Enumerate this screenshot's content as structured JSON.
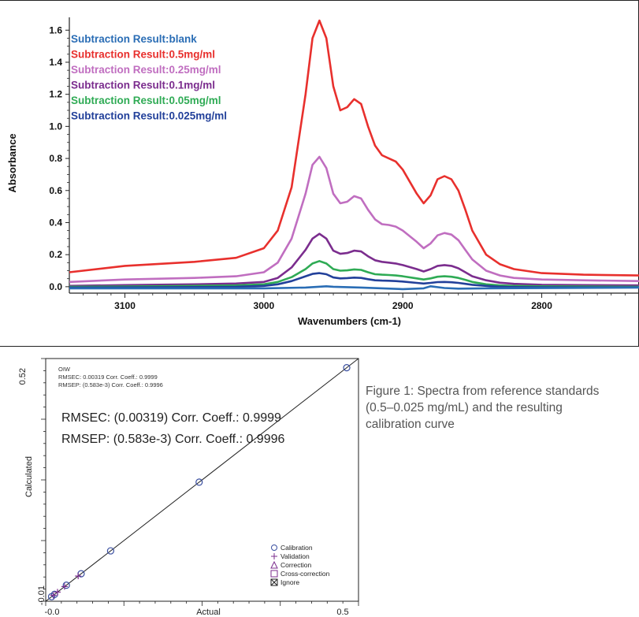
{
  "caption": "Figure 1: Spectra from reference standards (0.5–0.025 mg/mL) and the resulting calibration curve",
  "chart_data": [
    {
      "type": "line",
      "xlabel": "Wavenumbers (cm-1)",
      "ylabel": "Absorbance",
      "xlim": [
        3140,
        2730
      ],
      "ylim": [
        -0.04,
        1.68
      ],
      "x_reversed": true,
      "x_ticks": [
        3100,
        3000,
        2900,
        2800
      ],
      "x_tick_labels": [
        "3100",
        "3000",
        "2900",
        "2800"
      ],
      "y_ticks": [
        0.0,
        0.2,
        0.4,
        0.6,
        0.8,
        1.0,
        1.2,
        1.4,
        1.6
      ],
      "y_tick_labels": [
        "0.0",
        "0.2",
        "0.4",
        "0.6",
        "0.8",
        "1.0",
        "1.2",
        "1.4",
        "1.6"
      ],
      "legend_position": "top-left",
      "series": [
        {
          "name": "Subtraction Result:blank",
          "color": "#2a6db5",
          "x": [
            3140,
            3000,
            2970,
            2955,
            2950,
            2930,
            2900,
            2885,
            2880,
            2870,
            2860,
            2840,
            2730
          ],
          "y": [
            -0.01,
            -0.01,
            -0.005,
            0.003,
            0.0,
            -0.005,
            -0.015,
            -0.01,
            0.003,
            -0.008,
            -0.012,
            -0.01,
            -0.005
          ]
        },
        {
          "name": "Subtraction Result:0.5mg/ml",
          "color": "#e8302d",
          "x": [
            3140,
            3100,
            3050,
            3020,
            3000,
            2990,
            2980,
            2970,
            2965,
            2960,
            2955,
            2950,
            2945,
            2940,
            2935,
            2930,
            2925,
            2920,
            2915,
            2910,
            2905,
            2900,
            2890,
            2885,
            2880,
            2875,
            2870,
            2865,
            2860,
            2855,
            2850,
            2840,
            2830,
            2820,
            2800,
            2770,
            2730
          ],
          "y": [
            0.09,
            0.13,
            0.155,
            0.18,
            0.24,
            0.35,
            0.62,
            1.2,
            1.55,
            1.66,
            1.55,
            1.25,
            1.1,
            1.12,
            1.17,
            1.14,
            1.0,
            0.88,
            0.82,
            0.8,
            0.78,
            0.73,
            0.58,
            0.52,
            0.57,
            0.67,
            0.69,
            0.67,
            0.6,
            0.48,
            0.35,
            0.2,
            0.14,
            0.11,
            0.085,
            0.075,
            0.07
          ]
        },
        {
          "name": "Subtraction Result:0.25mg/ml",
          "color": "#c06ec0",
          "x": [
            3140,
            3100,
            3050,
            3020,
            3000,
            2990,
            2980,
            2970,
            2965,
            2960,
            2955,
            2950,
            2945,
            2940,
            2935,
            2930,
            2925,
            2920,
            2915,
            2910,
            2905,
            2900,
            2890,
            2885,
            2880,
            2875,
            2870,
            2865,
            2860,
            2855,
            2850,
            2840,
            2830,
            2820,
            2800,
            2770,
            2730
          ],
          "y": [
            0.03,
            0.045,
            0.055,
            0.065,
            0.09,
            0.15,
            0.3,
            0.58,
            0.76,
            0.81,
            0.74,
            0.58,
            0.52,
            0.53,
            0.565,
            0.55,
            0.48,
            0.42,
            0.39,
            0.385,
            0.375,
            0.35,
            0.28,
            0.24,
            0.27,
            0.32,
            0.335,
            0.325,
            0.29,
            0.23,
            0.17,
            0.1,
            0.07,
            0.055,
            0.045,
            0.04,
            0.035
          ]
        },
        {
          "name": "Subtraction Result:0.1mg/ml",
          "color": "#7b2d8e",
          "x": [
            3140,
            3100,
            3050,
            3020,
            3000,
            2990,
            2980,
            2970,
            2965,
            2960,
            2955,
            2950,
            2945,
            2940,
            2935,
            2930,
            2925,
            2920,
            2915,
            2910,
            2905,
            2900,
            2890,
            2885,
            2880,
            2875,
            2870,
            2865,
            2860,
            2855,
            2850,
            2840,
            2830,
            2820,
            2800,
            2770,
            2730
          ],
          "y": [
            0.005,
            0.01,
            0.015,
            0.02,
            0.03,
            0.055,
            0.12,
            0.23,
            0.3,
            0.33,
            0.3,
            0.225,
            0.205,
            0.21,
            0.225,
            0.22,
            0.19,
            0.165,
            0.155,
            0.15,
            0.145,
            0.135,
            0.11,
            0.095,
            0.11,
            0.13,
            0.135,
            0.13,
            0.115,
            0.09,
            0.065,
            0.04,
            0.025,
            0.018,
            0.012,
            0.01,
            0.008
          ]
        },
        {
          "name": "Subtraction Result:0.05mg/ml",
          "color": "#2fab55",
          "x": [
            3140,
            3100,
            3050,
            3020,
            3000,
            2990,
            2980,
            2970,
            2965,
            2960,
            2955,
            2950,
            2945,
            2940,
            2935,
            2930,
            2925,
            2920,
            2915,
            2910,
            2905,
            2900,
            2890,
            2885,
            2880,
            2875,
            2870,
            2865,
            2860,
            2855,
            2850,
            2840,
            2830,
            2820,
            2800,
            2770,
            2730
          ],
          "y": [
            0.0,
            0.002,
            0.005,
            0.008,
            0.015,
            0.03,
            0.06,
            0.11,
            0.145,
            0.16,
            0.145,
            0.11,
            0.1,
            0.102,
            0.108,
            0.105,
            0.09,
            0.078,
            0.075,
            0.073,
            0.07,
            0.065,
            0.052,
            0.045,
            0.052,
            0.062,
            0.065,
            0.062,
            0.055,
            0.043,
            0.03,
            0.015,
            0.008,
            0.005,
            0.003,
            0.002,
            0.0
          ]
        },
        {
          "name": "Subtraction Result:0.025mg/ml",
          "color": "#22409a",
          "x": [
            3140,
            3100,
            3050,
            3020,
            3000,
            2990,
            2980,
            2970,
            2965,
            2960,
            2955,
            2950,
            2945,
            2940,
            2935,
            2930,
            2925,
            2920,
            2915,
            2910,
            2905,
            2900,
            2890,
            2885,
            2880,
            2875,
            2870,
            2865,
            2860,
            2855,
            2850,
            2840,
            2830,
            2820,
            2800,
            2770,
            2730
          ],
          "y": [
            -0.005,
            -0.004,
            -0.002,
            0.0,
            0.005,
            0.015,
            0.035,
            0.065,
            0.08,
            0.085,
            0.078,
            0.058,
            0.052,
            0.054,
            0.057,
            0.055,
            0.047,
            0.04,
            0.038,
            0.037,
            0.035,
            0.032,
            0.024,
            0.02,
            0.024,
            0.029,
            0.03,
            0.028,
            0.024,
            0.018,
            0.012,
            0.005,
            0.0,
            -0.002,
            -0.003,
            -0.004,
            -0.004
          ]
        }
      ]
    },
    {
      "type": "scatter",
      "xlabel": "Actual",
      "ylabel": "Calculated",
      "xlim": [
        -0.01,
        0.52
      ],
      "ylim": [
        -0.01,
        0.52
      ],
      "x_tick_labels": [
        "-0.0",
        "0.5"
      ],
      "y_tick_labels": [
        "-0.01",
        "0.52"
      ],
      "header_lines": [
        "OIW",
        "RMSEC: 0.00319   Corr. Coeff.: 0.9999",
        "RMSEP: (0.583e-3)   Corr. Coeff.: 0.9996"
      ],
      "annotation_lines": [
        "RMSEC: (0.00319)    Corr.    Coeff.: 0.9999",
        "RMSEP: (0.583e-3)    Corr.   Coeff.: 0.9996"
      ],
      "legend_position": "bottom-right",
      "legend": [
        {
          "label": "Calibration",
          "marker": "circle",
          "color": "#3a4fa0"
        },
        {
          "label": "Validation",
          "marker": "plus",
          "color": "#7b2d8e"
        },
        {
          "label": "Correction",
          "marker": "triangle",
          "color": "#7b2d8e"
        },
        {
          "label": "Cross-correction",
          "marker": "square",
          "color": "#7b2d8e"
        },
        {
          "label": "Ignore",
          "marker": "x-square",
          "color": "#222222"
        }
      ],
      "fit_line": {
        "x": [
          -0.01,
          0.52
        ],
        "y": [
          -0.01,
          0.52
        ]
      },
      "series": [
        {
          "name": "Calibration",
          "marker": "circle",
          "x": [
            0.0,
            0.005,
            0.025,
            0.05,
            0.1,
            0.25,
            0.5
          ],
          "y": [
            0.0,
            0.005,
            0.025,
            0.05,
            0.1,
            0.25,
            0.5
          ]
        },
        {
          "name": "Validation",
          "marker": "plus",
          "x": [
            0.003,
            0.01,
            0.022,
            0.045
          ],
          "y": [
            0.003,
            0.01,
            0.022,
            0.045
          ]
        }
      ]
    }
  ]
}
